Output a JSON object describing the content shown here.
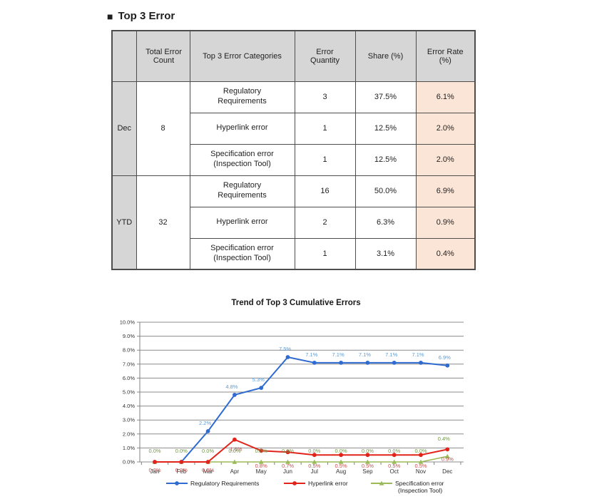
{
  "page": {
    "title_bullet": "■",
    "title": "Top 3 Error"
  },
  "colors": {
    "table_header_bg": "#d6d6d6",
    "table_accent_bg": "#fbe5d6",
    "table_border": "#4d4d4d",
    "series_blue": "#2f6bd0",
    "series_red": "#e2231a",
    "series_green": "#9bbb59"
  },
  "table": {
    "headers": [
      "",
      "Total Error Count",
      "Top 3 Error Categories",
      "Error Quantity",
      "Share (%)",
      "Error Rate (%)"
    ],
    "groups": [
      {
        "label": "Dec",
        "total": "8",
        "rows": [
          {
            "category": "Regulatory Requirements",
            "quantity": "3",
            "share": "37.5%",
            "rate": "6.1%"
          },
          {
            "category": "Hyperlink error",
            "quantity": "1",
            "share": "12.5%",
            "rate": "2.0%"
          },
          {
            "category": "Specification error (Inspection Tool)",
            "quantity": "1",
            "share": "12.5%",
            "rate": "2.0%"
          }
        ]
      },
      {
        "label": "YTD",
        "total": "32",
        "rows": [
          {
            "category": "Regulatory Requirements",
            "quantity": "16",
            "share": "50.0%",
            "rate": "6.9%"
          },
          {
            "category": "Hyperlink error",
            "quantity": "2",
            "share": "6.3%",
            "rate": "0.9%"
          },
          {
            "category": "Specification error (Inspection Tool)",
            "quantity": "1",
            "share": "3.1%",
            "rate": "0.4%"
          }
        ]
      }
    ]
  },
  "chart_data": {
    "type": "line",
    "title": "Trend of Top 3 Cumulative Errors",
    "x": [
      "Jan",
      "Feb",
      "Mar",
      "Apr",
      "May",
      "Jun",
      "Jul",
      "Aug",
      "Sep",
      "Oct",
      "Nov",
      "Dec"
    ],
    "ylabel": "",
    "xlabel": "",
    "ylim": [
      0,
      10
    ],
    "ytick_step": 1.0,
    "ytick_labels": [
      "0.0%",
      "1.0%",
      "2.0%",
      "3.0%",
      "4.0%",
      "5.0%",
      "6.0%",
      "7.0%",
      "8.0%",
      "9.0%",
      "10.0%"
    ],
    "grid": true,
    "legend_position": "bottom",
    "series": [
      {
        "name": "Regulatory Requirements",
        "color": "#2f6bd0",
        "label_color": "#5b9bd5",
        "marker": "circle",
        "values": [
          0.0,
          0.0,
          2.2,
          4.8,
          5.3,
          7.5,
          7.1,
          7.1,
          7.1,
          7.1,
          7.1,
          6.9
        ],
        "labels": [
          "",
          "",
          "2.2%",
          "4.8%",
          "5.3%",
          "7.5%",
          "7.1%",
          "7.1%",
          "7.1%",
          "7.1%",
          "7.1%",
          "6.9%"
        ]
      },
      {
        "name": "Hyperlink error",
        "color": "#e2231a",
        "label_color": "#c0504d",
        "marker": "circle",
        "values": [
          0.0,
          0.0,
          0.0,
          1.6,
          0.8,
          0.7,
          0.5,
          0.5,
          0.5,
          0.5,
          0.5,
          0.9
        ],
        "labels": [
          "0.0%",
          "0.0%",
          "0.0%",
          "1.6%",
          "0.8%",
          "0.7%",
          "0.5%",
          "0.5%",
          "0.5%",
          "0.5%",
          "0.5%",
          "0.9%"
        ]
      },
      {
        "name": "Specification error (Inspection Tool)",
        "color": "#9bbb59",
        "label_color": "#6f9645",
        "marker": "triangle",
        "values": [
          0.0,
          0.0,
          0.0,
          0.0,
          0.0,
          0.0,
          0.0,
          0.0,
          0.0,
          0.0,
          0.0,
          0.4
        ],
        "labels": [
          "0.0%",
          "0.0%",
          "0.0%",
          "0.0%",
          "0.0%",
          "0.0%",
          "0.0%",
          "0.0%",
          "0.0%",
          "0.0%",
          "0.0%",
          "0.4%"
        ]
      }
    ]
  }
}
